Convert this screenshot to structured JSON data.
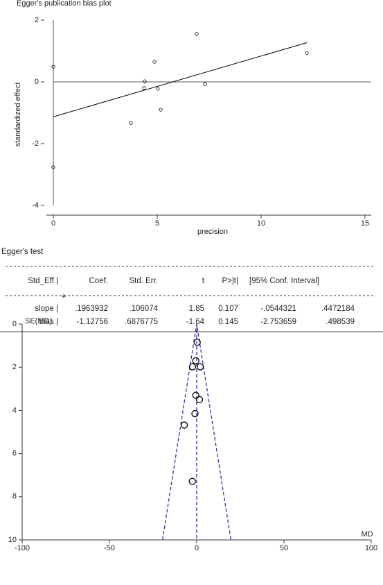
{
  "chart_data": [
    {
      "type": "scatter",
      "title": "Egger's publication bias plot",
      "x_label": "precision",
      "y_label": "standardized effect",
      "xlim": [
        -0.5,
        15.3
      ],
      "ylim": [
        -4.2,
        2.3
      ],
      "xticks": [
        0,
        5,
        10,
        15
      ],
      "yticks": [
        -4,
        -2,
        0,
        2
      ],
      "color": "#000000",
      "x": [
        0,
        0,
        3.73,
        4.4,
        4.37,
        4.87,
        5.03,
        5.17,
        6.9,
        7.3,
        12.2
      ],
      "values": [
        0.49,
        -2.76,
        -1.33,
        0.02,
        -0.2,
        0.65,
        -0.22,
        -0.9,
        1.55,
        -0.07,
        0.94
      ],
      "lines": [
        {
          "x": [
            0,
            12.2
          ],
          "y": [
            -1.13,
            1.27
          ],
          "color": "#000000",
          "dashed": false
        }
      ]
    },
    {
      "type": "scatter",
      "x_label": "MD",
      "y_label": "SE(MD)",
      "xlim": [
        -100,
        100
      ],
      "ylim": [
        0,
        10
      ],
      "y_reversed": true,
      "xticks": [
        -100,
        -50,
        0,
        50,
        100
      ],
      "yticks": [
        0,
        2,
        4,
        6,
        8,
        10
      ],
      "color": "#000000",
      "x": [
        0.3,
        -0.5,
        2.0,
        -2.4,
        -0.5,
        1.6,
        -1.0,
        -7.1,
        -2.5
      ],
      "values": [
        0.84,
        1.7,
        1.98,
        1.98,
        3.3,
        3.5,
        4.15,
        4.68,
        7.29
      ],
      "lines": [
        {
          "x": [
            -19.6,
            0,
            19.6
          ],
          "y": [
            10,
            0,
            10
          ],
          "color": "#33339a",
          "dashed": true
        },
        {
          "x": [
            0,
            0
          ],
          "y": [
            0,
            10
          ],
          "color": "#33339a",
          "dashed": true
        }
      ]
    }
  ],
  "table": {
    "title": "Egger's test",
    "header": [
      "Std_Eff |",
      "Coef.",
      "Std. Err.",
      "t",
      "P>|t|",
      "[95% Conf. Interval]"
    ],
    "rows": [
      [
        "slope |",
        ".1963932",
        ".106074",
        "1.85",
        "0.107",
        "-.0544321",
        ".4472184"
      ],
      [
        "bias |",
        "-1.12756",
        ".6876775",
        "-1.64",
        "0.145",
        "-2.753659",
        ".498539"
      ]
    ]
  }
}
